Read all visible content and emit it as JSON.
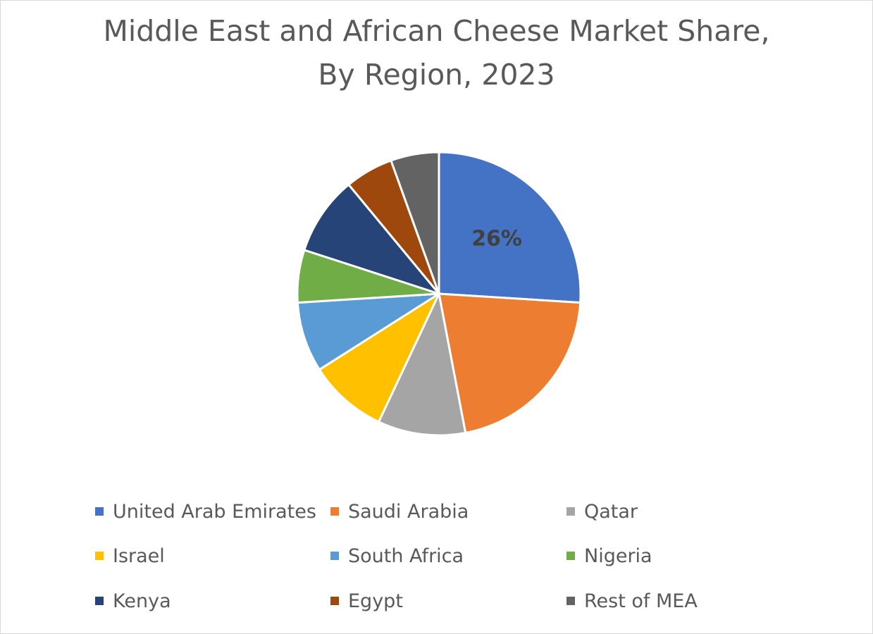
{
  "chart_data": {
    "type": "pie",
    "title": "Middle East and African Cheese Market Share,",
    "subtitle": "By Region, 2023",
    "legend_position": "bottom",
    "slices": [
      {
        "label": "United Arab Emirates",
        "value": 26,
        "color": "#4472C4",
        "data_label": "26%"
      },
      {
        "label": "Saudi Arabia",
        "value": 21,
        "color": "#ED7D31"
      },
      {
        "label": "Qatar",
        "value": 10,
        "color": "#A5A5A5"
      },
      {
        "label": "Israel",
        "value": 9,
        "color": "#FFC000"
      },
      {
        "label": "South Africa",
        "value": 8,
        "color": "#5B9BD5"
      },
      {
        "label": "Nigeria",
        "value": 6,
        "color": "#70AD47"
      },
      {
        "label": "Kenya",
        "value": 9,
        "color": "#264478"
      },
      {
        "label": "Egypt",
        "value": 5.5,
        "color": "#9E480E"
      },
      {
        "label": "Rest of MEA",
        "value": 5.5,
        "color": "#636363"
      }
    ]
  }
}
